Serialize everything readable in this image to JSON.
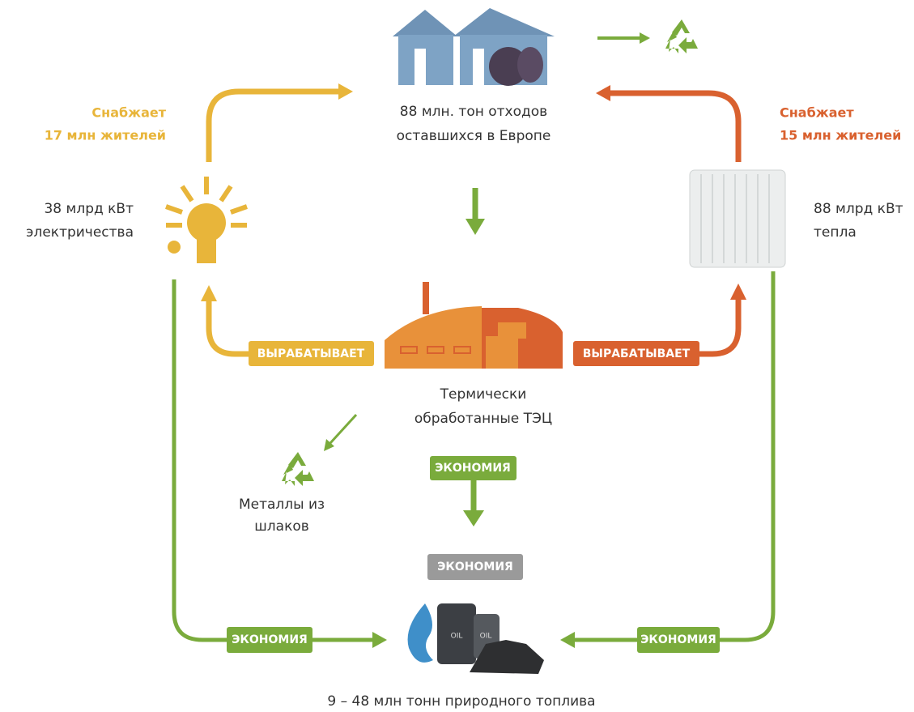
{
  "waste": {
    "lines": [
      "88 млн. тон отходов",
      "оставшихся в Европе"
    ]
  },
  "electricity": {
    "supply_lines": [
      "Снабжает",
      "17 млн жителей"
    ],
    "amount_lines": [
      "38 млрд кВт",
      "электричества"
    ]
  },
  "heat": {
    "supply_lines": [
      "Снабжает",
      "15 млн жителей"
    ],
    "amount_lines": [
      "88 млрд кВт",
      "тепла"
    ]
  },
  "plant": {
    "lines": [
      "Термически",
      "обработанные ТЭЦ"
    ],
    "badge_left": "ВЫРАБАТЫВАЕТ",
    "badge_right": "ВЫРАБАТЫВАЕТ"
  },
  "metals": {
    "lines": [
      "Металлы из",
      "шлаков"
    ]
  },
  "savings": {
    "center": "ЭКОНОМИЯ",
    "gray": "ЭКОНОМИЯ",
    "left": "ЭКОНОМИЯ",
    "right": "ЭКОНОМИЯ"
  },
  "fuel": {
    "barrel_labels": [
      "OIL",
      "OIL"
    ],
    "caption": "9 – 48 млн тонн природного топлива"
  }
}
